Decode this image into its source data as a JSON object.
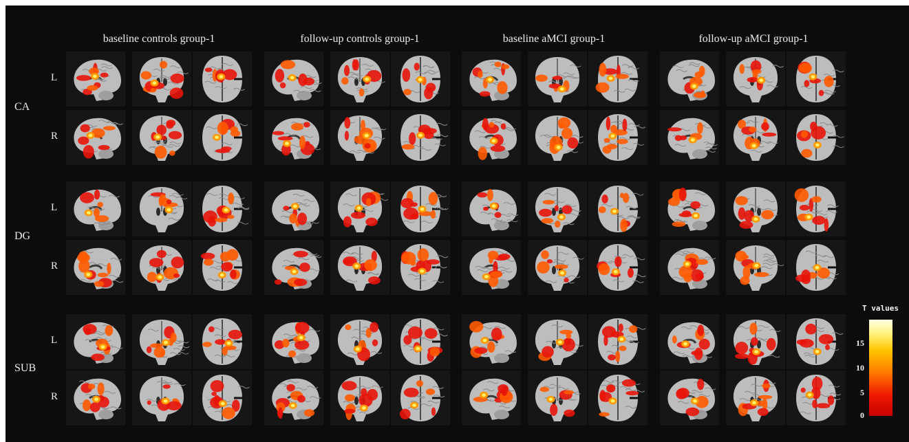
{
  "columns": [
    "baseline controls group-1",
    "follow-up controls group-1",
    "baseline aMCI group-1",
    "follow-up aMCI group-1"
  ],
  "regions": [
    "CA",
    "DG",
    "SUB"
  ],
  "hemispheres": [
    "L",
    "R"
  ],
  "views": [
    "sagittal-slice",
    "coronal-slice",
    "axial-slice"
  ],
  "colorbar": {
    "title": "T values",
    "ticks": [
      "15",
      "10",
      "5",
      "0"
    ],
    "range": [
      0,
      18
    ],
    "colors": [
      "#c80000",
      "#f01a00",
      "#ff7a00",
      "#ffc400",
      "#fff27a",
      "#ffffe6"
    ]
  },
  "colors": {
    "background": "#0c0c0c",
    "text": "#ececec",
    "brain_gray": "#bdbdbd"
  }
}
